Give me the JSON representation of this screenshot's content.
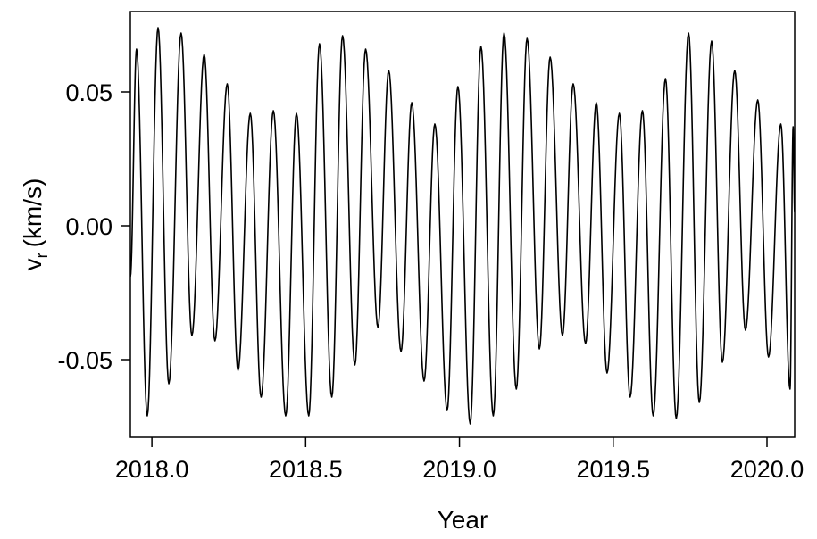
{
  "chart_data": {
    "type": "line",
    "title": "",
    "xlabel": "Year",
    "ylabel": {
      "symbol": "v",
      "subscript": "r",
      "unit": "(km/s)"
    },
    "xlim": [
      2017.93,
      2020.09
    ],
    "ylim": [
      -0.079,
      0.08
    ],
    "xticks": [
      {
        "value": 2018.0,
        "label": "2018.0"
      },
      {
        "value": 2018.5,
        "label": "2018.5"
      },
      {
        "value": 2019.0,
        "label": "2019.0"
      },
      {
        "value": 2019.5,
        "label": "2019.5"
      },
      {
        "value": 2020.0,
        "label": "2020.0"
      }
    ],
    "yticks": [
      {
        "value": -0.05,
        "label": "-0.05"
      },
      {
        "value": 0.0,
        "label": "0.00"
      },
      {
        "value": 0.05,
        "label": "0.05"
      }
    ],
    "grid": false,
    "legend": "none",
    "line_color": "#000000",
    "series": [
      {
        "x_start": 2017.93,
        "x_end": 2020.09,
        "extrema": [
          [
            2017.93,
            -0.019
          ],
          [
            2017.95,
            0.066
          ],
          [
            2017.985,
            -0.071
          ],
          [
            2018.02,
            0.074
          ],
          [
            2018.055,
            -0.059
          ],
          [
            2018.095,
            0.072
          ],
          [
            2018.13,
            -0.041
          ],
          [
            2018.17,
            0.064
          ],
          [
            2018.205,
            -0.043
          ],
          [
            2018.245,
            0.053
          ],
          [
            2018.28,
            -0.054
          ],
          [
            2018.32,
            0.042
          ],
          [
            2018.355,
            -0.064
          ],
          [
            2018.395,
            0.043
          ],
          [
            2018.435,
            -0.071
          ],
          [
            2018.47,
            0.042
          ],
          [
            2018.51,
            -0.071
          ],
          [
            2018.545,
            0.068
          ],
          [
            2018.585,
            -0.064
          ],
          [
            2018.62,
            0.071
          ],
          [
            2018.66,
            -0.052
          ],
          [
            2018.695,
            0.066
          ],
          [
            2018.735,
            -0.038
          ],
          [
            2018.77,
            0.058
          ],
          [
            2018.81,
            -0.047
          ],
          [
            2018.845,
            0.046
          ],
          [
            2018.885,
            -0.058
          ],
          [
            2018.92,
            0.038
          ],
          [
            2018.96,
            -0.069
          ],
          [
            2018.995,
            0.052
          ],
          [
            2019.035,
            -0.074
          ],
          [
            2019.07,
            0.067
          ],
          [
            2019.11,
            -0.071
          ],
          [
            2019.145,
            0.072
          ],
          [
            2019.185,
            -0.061
          ],
          [
            2019.22,
            0.07
          ],
          [
            2019.26,
            -0.046
          ],
          [
            2019.295,
            0.063
          ],
          [
            2019.335,
            -0.041
          ],
          [
            2019.37,
            0.053
          ],
          [
            2019.41,
            -0.044
          ],
          [
            2019.445,
            0.046
          ],
          [
            2019.48,
            -0.055
          ],
          [
            2019.52,
            0.042
          ],
          [
            2019.555,
            -0.064
          ],
          [
            2019.595,
            0.043
          ],
          [
            2019.63,
            -0.071
          ],
          [
            2019.67,
            0.055
          ],
          [
            2019.705,
            -0.072
          ],
          [
            2019.745,
            0.072
          ],
          [
            2019.78,
            -0.066
          ],
          [
            2019.82,
            0.069
          ],
          [
            2019.855,
            -0.051
          ],
          [
            2019.895,
            0.058
          ],
          [
            2019.93,
            -0.039
          ],
          [
            2019.97,
            0.047
          ],
          [
            2020.005,
            -0.049
          ],
          [
            2020.045,
            0.038
          ],
          [
            2020.075,
            -0.061
          ],
          [
            2020.085,
            0.037
          ],
          [
            2020.09,
            0.005
          ]
        ]
      }
    ]
  }
}
